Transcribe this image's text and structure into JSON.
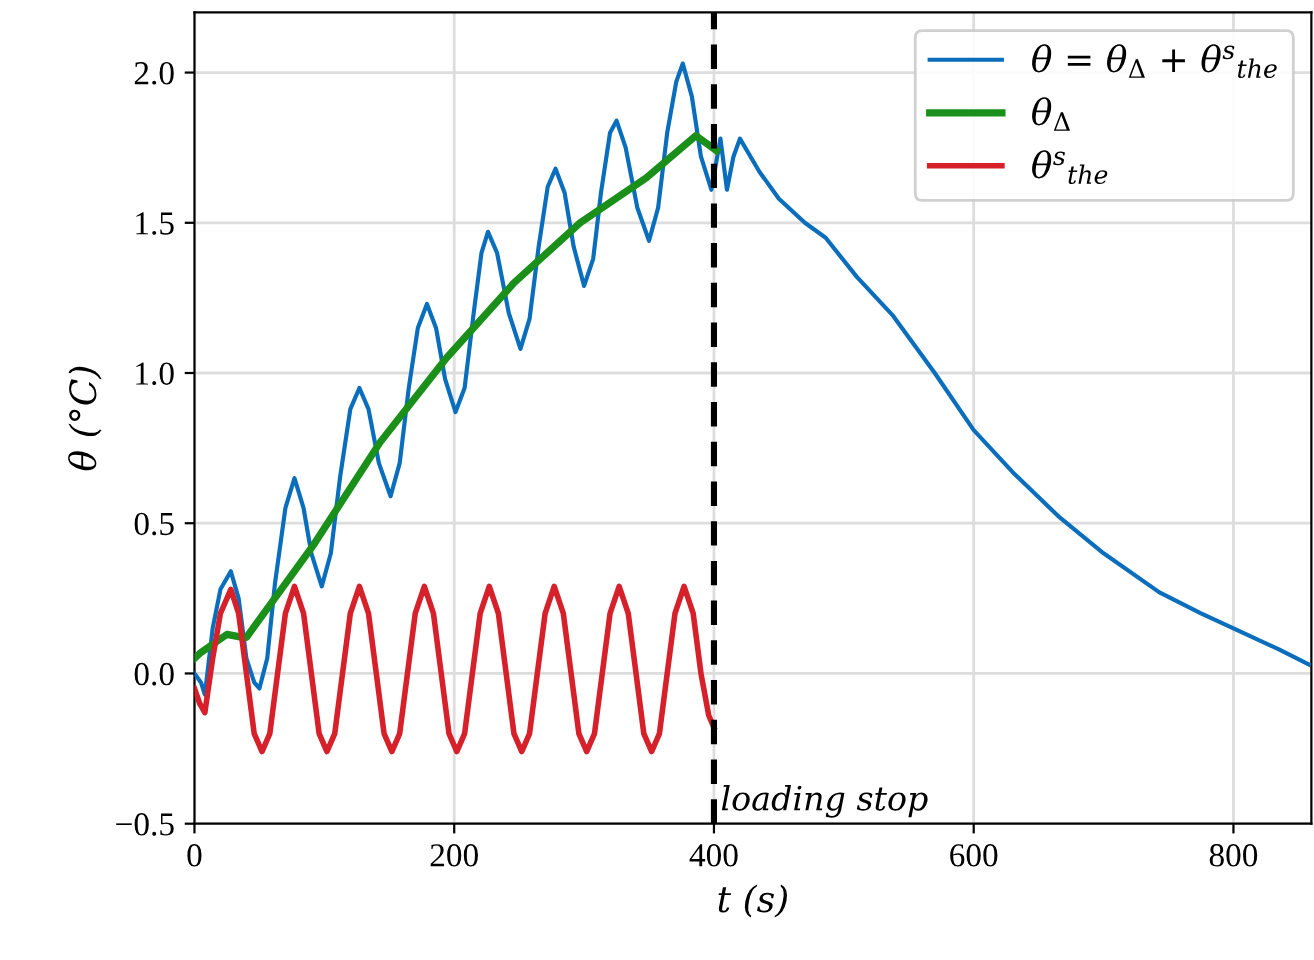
{
  "chart_data": {
    "type": "line",
    "xlabel": "t (s)",
    "ylabel": "θ (°C)",
    "xlim": [
      0,
      860
    ],
    "ylim": [
      -0.5,
      2.2
    ],
    "xticks": [
      0,
      200,
      400,
      600,
      800
    ],
    "yticks": [
      {
        "value": -0.5,
        "label": "−0.5"
      },
      {
        "value": 0,
        "label": "0.0"
      },
      {
        "value": 0.5,
        "label": "0.5"
      },
      {
        "value": 1,
        "label": "1.0"
      },
      {
        "value": 1.5,
        "label": "1.5"
      },
      {
        "value": 2,
        "label": "2.0"
      }
    ],
    "grid": true,
    "legend": "top right",
    "ref_lines": [
      {
        "axis": "x",
        "value": 400,
        "label": "loading stop",
        "color": "#000000",
        "line_style": "dashed"
      }
    ],
    "series": [
      {
        "name": "θ = θ$_{Δ}$ + θ$^{s}$$_{the}$",
        "color": "#0a6ebd",
        "x": [
          0,
          5,
          8,
          14,
          20,
          28,
          34,
          40,
          46,
          50,
          56,
          62,
          70,
          77,
          84,
          90,
          98,
          105,
          112,
          120,
          127,
          134,
          142,
          151,
          158,
          165,
          172,
          179,
          186,
          193,
          201,
          208,
          215,
          221,
          226,
          233,
          242,
          251,
          258,
          265,
          272,
          278,
          285,
          292,
          300,
          307,
          313,
          320,
          325,
          332,
          341,
          350,
          357,
          364,
          371,
          376,
          383,
          390,
          398,
          405,
          410,
          415,
          420,
          435,
          450,
          470,
          486,
          510,
          538,
          570,
          600,
          630,
          666,
          700,
          743,
          775,
          805,
          835,
          858
        ],
        "values": [
          0.0,
          -0.03,
          -0.07,
          0.15,
          0.28,
          0.34,
          0.25,
          0.05,
          -0.03,
          -0.05,
          0.05,
          0.3,
          0.55,
          0.65,
          0.55,
          0.4,
          0.29,
          0.4,
          0.65,
          0.88,
          0.95,
          0.88,
          0.7,
          0.59,
          0.7,
          0.95,
          1.15,
          1.23,
          1.15,
          0.98,
          0.87,
          0.95,
          1.2,
          1.4,
          1.47,
          1.4,
          1.2,
          1.08,
          1.18,
          1.42,
          1.62,
          1.68,
          1.6,
          1.42,
          1.29,
          1.38,
          1.6,
          1.8,
          1.84,
          1.75,
          1.55,
          1.44,
          1.55,
          1.8,
          1.97,
          2.03,
          1.92,
          1.72,
          1.61,
          1.78,
          1.61,
          1.72,
          1.78,
          1.67,
          1.58,
          1.5,
          1.45,
          1.32,
          1.19,
          1.0,
          0.81,
          0.67,
          0.52,
          0.4,
          0.27,
          0.2,
          0.14,
          0.08,
          0.03
        ]
      },
      {
        "name": "θ$_{Δ}$",
        "color": "#1a8f1a",
        "x": [
          0,
          5,
          25,
          37,
          40,
          92,
          143,
          194,
          246,
          297,
          348,
          386,
          402
        ],
        "values": [
          0.05,
          0.07,
          0.13,
          0.12,
          0.12,
          0.43,
          0.77,
          1.05,
          1.3,
          1.5,
          1.65,
          1.79,
          1.74
        ]
      },
      {
        "name": "θ$^{s}$$_{the}$",
        "color": "#d6202a",
        "x": [
          0,
          4,
          8,
          14,
          20,
          28,
          34,
          40,
          46,
          52,
          58,
          64,
          70,
          77,
          84,
          90,
          96,
          102,
          108,
          114,
          120,
          127,
          134,
          140,
          146,
          152,
          158,
          164,
          170,
          177,
          184,
          190,
          196,
          202,
          208,
          214,
          220,
          227,
          234,
          240,
          246,
          252,
          258,
          264,
          270,
          277,
          284,
          290,
          296,
          302,
          308,
          314,
          320,
          327,
          334,
          340,
          346,
          352,
          358,
          364,
          370,
          377,
          384,
          390,
          396,
          400
        ],
        "values": [
          -0.05,
          -0.1,
          -0.13,
          0.05,
          0.2,
          0.28,
          0.2,
          0.0,
          -0.2,
          -0.26,
          -0.2,
          0.0,
          0.2,
          0.29,
          0.2,
          0.0,
          -0.2,
          -0.26,
          -0.2,
          0.0,
          0.2,
          0.29,
          0.2,
          0.0,
          -0.2,
          -0.26,
          -0.2,
          0.0,
          0.2,
          0.29,
          0.2,
          0.0,
          -0.2,
          -0.26,
          -0.2,
          0.0,
          0.2,
          0.29,
          0.2,
          0.0,
          -0.2,
          -0.26,
          -0.2,
          0.0,
          0.2,
          0.29,
          0.2,
          0.0,
          -0.2,
          -0.26,
          -0.2,
          0.0,
          0.2,
          0.29,
          0.2,
          0.0,
          -0.2,
          -0.26,
          -0.2,
          0.0,
          0.2,
          0.29,
          0.2,
          0.0,
          -0.14,
          -0.18
        ]
      }
    ]
  }
}
